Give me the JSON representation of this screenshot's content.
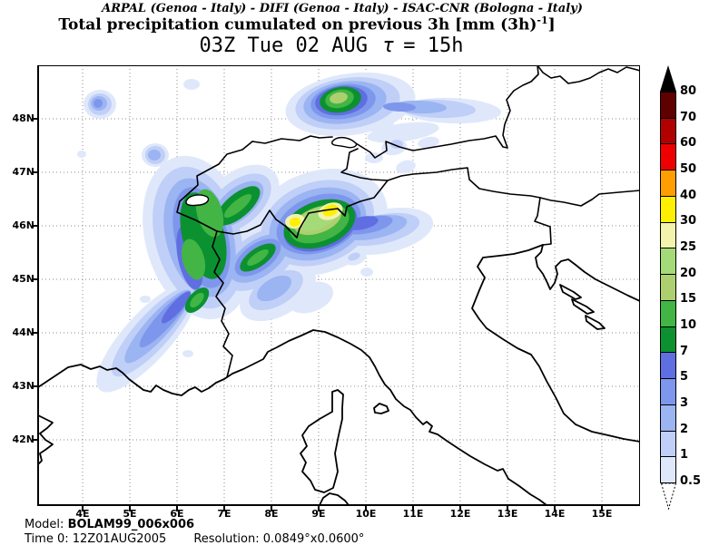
{
  "header": {
    "institutions": "ARPAL (Genoa - Italy)  -  DIFI (Genoa - Italy)  -  ISAC-CNR (Bologna - Italy)",
    "title_main": "Total precipitation cumulated on previous 3h [mm (3h)",
    "title_sup": "-1",
    "title_end": "]",
    "valid_time": "03Z Tue 02 AUG",
    "tau_symbol": "τ",
    "tau_rest": "=  15h"
  },
  "footer": {
    "model_label": "Model:",
    "model_value": "BOLAM99_006x006",
    "time_label": "Time 0:",
    "time_value": "12Z01AUG2005",
    "resolution_label": "Resolution:",
    "resolution_value": "0.0849°x0.0600°"
  },
  "axes": {
    "lon": [
      {
        "deg": 4,
        "label": "4E"
      },
      {
        "deg": 5,
        "label": "5E"
      },
      {
        "deg": 6,
        "label": "6E"
      },
      {
        "deg": 7,
        "label": "7E"
      },
      {
        "deg": 8,
        "label": "8E"
      },
      {
        "deg": 9,
        "label": "9E"
      },
      {
        "deg": 10,
        "label": "10E"
      },
      {
        "deg": 11,
        "label": "11E"
      },
      {
        "deg": 12,
        "label": "12E"
      },
      {
        "deg": 13,
        "label": "13E"
      },
      {
        "deg": 14,
        "label": "14E"
      },
      {
        "deg": 15,
        "label": "15E"
      }
    ],
    "lat": [
      {
        "deg": 48,
        "label": "48N"
      },
      {
        "deg": 47,
        "label": "47N"
      },
      {
        "deg": 46,
        "label": "46N"
      },
      {
        "deg": 45,
        "label": "45N"
      },
      {
        "deg": 44,
        "label": "44N"
      },
      {
        "deg": 43,
        "label": "43N"
      },
      {
        "deg": 42,
        "label": "42N"
      }
    ],
    "grid_color": "#8C8C8C"
  },
  "colorbar": {
    "levels": [
      80,
      70,
      60,
      50,
      40,
      30,
      25,
      20,
      15,
      10,
      7,
      5,
      3,
      2,
      1,
      0.5
    ],
    "overflow_color": "#000000",
    "colors": {
      "70": "#5E0000",
      "60": "#B00000",
      "50": "#EE0000",
      "40": "#FF9E00",
      "30": "#FFEF00",
      "25": "#F2F3AC",
      "20": "#A5DA78",
      "15": "#AECF6F",
      "10": "#42B545",
      "7": "#0C9130",
      "5": "#5F6FE2",
      "3": "#7E97EC",
      "2": "#9BB4F2",
      "1": "#C0CFF7",
      "0.5": "#DFE8FB"
    }
  },
  "chart_data": {
    "type": "filled-contour-map",
    "variable": "Total precipitation cumulated on previous 3h",
    "units": "mm (3h)-1",
    "valid_time": "03Z Tue 02 AUG, tau = 15h",
    "model": "BOLAM99_006x006",
    "initialization": "12Z01AUG2005",
    "resolution": "0.0849°x0.0600°",
    "contour_levels_mm": [
      0.5,
      1,
      2,
      3,
      5,
      7,
      10,
      15,
      20,
      25,
      30,
      40,
      50,
      60,
      70,
      80
    ],
    "x_axis_labels": [
      "4E",
      "5E",
      "6E",
      "7E",
      "8E",
      "9E",
      "10E",
      "11E",
      "12E",
      "13E",
      "14E",
      "15E"
    ],
    "y_axis_labels": [
      "48N",
      "47N",
      "46N",
      "45N",
      "44N",
      "43N",
      "42N"
    ],
    "features": [
      {
        "location": "central Alps near 9E 46N",
        "max_mm": "30-40"
      },
      {
        "location": "western Alps band 6-8E 44.5-46.5N",
        "max_mm": "10-15"
      },
      {
        "location": "southern Germany near 9.3E 48.3N",
        "max_mm": "15-20"
      },
      {
        "location": "SW-NE band over Ligurian sea toward 4.5E 43.5N",
        "max_mm": "3-5"
      }
    ]
  }
}
